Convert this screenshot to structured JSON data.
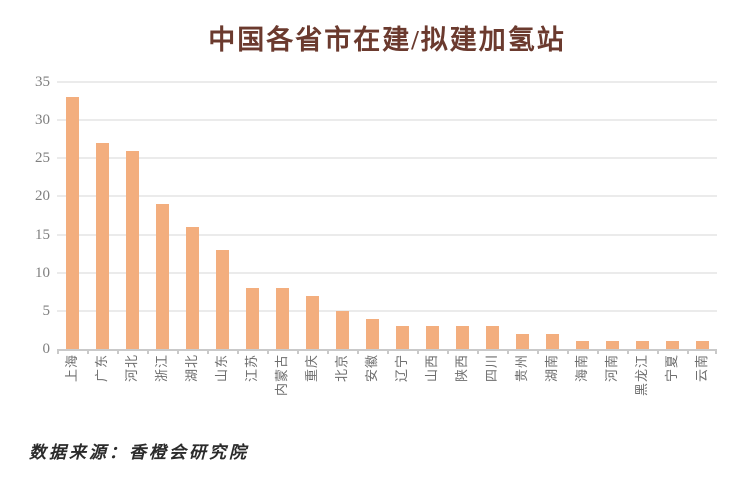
{
  "title": "中国各省市在建/拟建加氢站",
  "source_text": "数据来源：香橙会研究院",
  "colors": {
    "bar": "#F3AE7E",
    "title": "#6B3A2E",
    "gridline": "#EBEBEB",
    "axis_line": "#C9C9C9",
    "y_label": "#7F7F7F",
    "x_label": "#6E6E6E",
    "source_text": "#2B2B2B",
    "background": "#FFFFFF"
  },
  "chart_data": {
    "type": "bar",
    "title": "中国各省市在建/拟建加氢站",
    "categories": [
      "上海",
      "广东",
      "河北",
      "浙江",
      "湖北",
      "山东",
      "江苏",
      "内蒙古",
      "重庆",
      "北京",
      "安徽",
      "辽宁",
      "山西",
      "陕西",
      "四川",
      "贵州",
      "湖南",
      "海南",
      "河南",
      "黑龙江",
      "宁夏",
      "云南"
    ],
    "values": [
      33,
      27,
      26,
      19,
      16,
      13,
      8,
      8,
      7,
      5,
      4,
      3,
      3,
      3,
      3,
      2,
      2,
      1,
      1,
      1,
      1,
      1
    ],
    "xlabel": "",
    "ylabel": "",
    "ylim": [
      0,
      35
    ],
    "yticks": [
      0,
      5,
      10,
      15,
      20,
      25,
      30,
      35
    ],
    "grid": true,
    "legend_position": "none",
    "x_label_rotation_deg": -90,
    "annotation": "数据来源：香橙会研究院"
  }
}
